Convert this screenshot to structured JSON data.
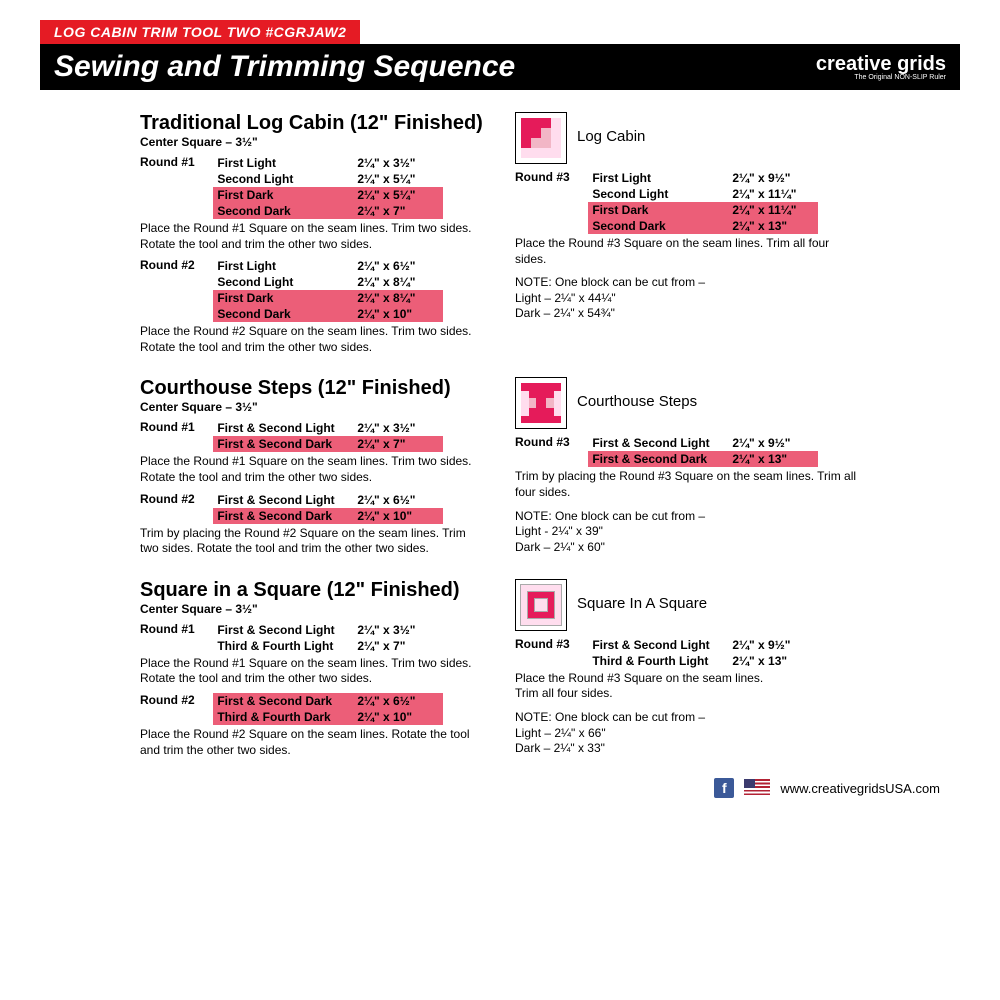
{
  "header": {
    "tab": "LOG CABIN TRIM TOOL TWO #CGRJAW2",
    "title": "Sewing and Trimming Sequence",
    "logo_main": "creative grids",
    "logo_tag": "The Original NON-SLIP Ruler"
  },
  "sections": [
    {
      "title": "Traditional Log Cabin (12\" Finished)",
      "center": "Center Square – 3½\"",
      "block_label": "Log Cabin",
      "icon": "logcabin",
      "left_rounds": [
        {
          "label": "Round #1",
          "rows": [
            {
              "name": "First Light",
              "val": "2¼\" x 3½\"",
              "dark": false
            },
            {
              "name": "Second Light",
              "val": "2¼\" x 5¼\"",
              "dark": false
            },
            {
              "name": "First Dark",
              "val": "2¼\" x 5¼\"",
              "dark": true
            },
            {
              "name": "Second Dark",
              "val": "2¼\" x 7\"",
              "dark": true
            }
          ],
          "note": "Place the Round #1 Square on the seam lines. Trim two sides. Rotate the tool and trim the other two sides."
        },
        {
          "label": "Round #2",
          "rows": [
            {
              "name": "First Light",
              "val": "2¼\" x 6½\"",
              "dark": false
            },
            {
              "name": "Second Light",
              "val": "2¼\" x 8¼\"",
              "dark": false
            },
            {
              "name": "First Dark",
              "val": "2¼\" x 8¼\"",
              "dark": true
            },
            {
              "name": "Second Dark",
              "val": "2¼\" x 10\"",
              "dark": true
            }
          ],
          "note": "Place the Round #2 Square on the seam lines. Trim two sides. Rotate the tool and trim the other two sides."
        }
      ],
      "right_rounds": [
        {
          "label": "Round #3",
          "rows": [
            {
              "name": "First Light",
              "val": "2¼\" x 9½\"",
              "dark": false
            },
            {
              "name": "Second Light",
              "val": "2¼\" x 11¼\"",
              "dark": false
            },
            {
              "name": "First Dark",
              "val": "2¼\" x 11¼\"",
              "dark": true
            },
            {
              "name": "Second Dark",
              "val": "2¼\" x 13\"",
              "dark": true
            }
          ],
          "note": "Place the Round #3 Square on the seam lines. Trim all four sides."
        }
      ],
      "right_extra": "NOTE:  One block can be cut from –\nLight – 2¼\" x 44¼\"\nDark – 2¼\" x 54¾\""
    },
    {
      "title": "Courthouse Steps (12\" Finished)",
      "center": "Center Square – 3½\"",
      "block_label": "Courthouse Steps",
      "icon": "courthouse",
      "left_rounds": [
        {
          "label": "Round #1",
          "rows": [
            {
              "name": "First & Second Light",
              "val": "2¼\" x 3½\"",
              "dark": false
            },
            {
              "name": "First & Second Dark",
              "val": "2¼\" x 7\"",
              "dark": true
            }
          ],
          "note": "Place the Round #1 Square on the seam lines.  Trim two sides. Rotate the tool and trim the other two sides."
        },
        {
          "label": "Round #2",
          "rows": [
            {
              "name": "First & Second Light",
              "val": "2¼\" x 6½\"",
              "dark": false
            },
            {
              "name": "First & Second Dark",
              "val": "2¼\" x 10\"",
              "dark": true
            }
          ],
          "note": "Trim by placing the Round #2 Square on the seam lines. Trim two sides. Rotate the tool and trim the other two sides."
        }
      ],
      "right_rounds": [
        {
          "label": "Round #3",
          "rows": [
            {
              "name": "First & Second Light",
              "val": "2¼\" x 9½\"",
              "dark": false
            },
            {
              "name": "First & Second Dark",
              "val": "2¼\" x 13\"",
              "dark": true
            }
          ],
          "note": "Trim by placing the Round #3 Square on the seam lines. Trim all four sides."
        }
      ],
      "right_extra": "NOTE:  One block can be cut from –\nLight - 2¼\" x 39\"\nDark – 2¼\" x 60\""
    },
    {
      "title": "Square in a Square (12\" Finished)",
      "center": "Center Square – 3½\"",
      "block_label": "Square In A Square",
      "icon": "square",
      "left_rounds": [
        {
          "label": "Round #1",
          "rows": [
            {
              "name": "First & Second Light",
              "val": "2¼\" x 3½\"",
              "dark": false
            },
            {
              "name": "Third & Fourth Light",
              "val": "2¼\" x 7\"",
              "dark": false
            }
          ],
          "note": "Place the Round #1 Square on the seam lines.  Trim two sides. Rotate the tool and trim the other two sides."
        },
        {
          "label": "Round #2",
          "rows": [
            {
              "name": "First & Second Dark",
              "val": "2¼\" x 6½\"",
              "dark": true
            },
            {
              "name": "Third & Fourth Dark",
              "val": "2¼\" x 10\"",
              "dark": true
            }
          ],
          "note": "Place the Round #2 Square on the seam lines. Rotate the tool and trim the other two sides."
        }
      ],
      "right_rounds": [
        {
          "label": "Round #3",
          "rows": [
            {
              "name": "First & Second Light",
              "val": "2¼\" x 9½\"",
              "dark": false
            },
            {
              "name": "Third & Fourth Light",
              "val": "2¼\" x 13\"",
              "dark": false
            }
          ],
          "note": "Place the Round #3 Square on the seam lines.\nTrim all four sides."
        }
      ],
      "right_extra": "NOTE:  One block can be cut from –\nLight – 2¼\" x 66\"\nDark – 2¼\" x 33\""
    }
  ],
  "footer": {
    "url": "www.creativegridsUSA.com"
  }
}
